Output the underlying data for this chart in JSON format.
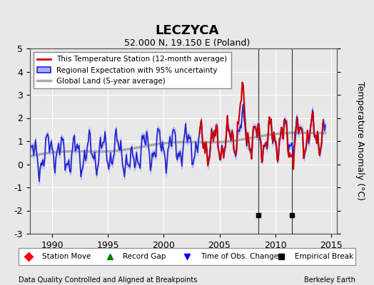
{
  "title": "LECZYCA",
  "subtitle": "52.000 N, 19.150 E (Poland)",
  "ylabel": "Temperature Anomaly (°C)",
  "xlim": [
    1988.0,
    2015.5
  ],
  "ylim": [
    -3.0,
    5.0
  ],
  "yticks": [
    -3,
    -2,
    -1,
    0,
    1,
    2,
    3,
    4,
    5
  ],
  "xticks": [
    1990,
    1995,
    2000,
    2005,
    2010,
    2015
  ],
  "background_color": "#e8e8e8",
  "plot_bg_color": "#e8e8e8",
  "grid_color": "#ffffff",
  "empirical_breaks": [
    2008.5,
    2011.5
  ],
  "footer_left": "Data Quality Controlled and Aligned at Breakpoints",
  "footer_right": "Berkeley Earth"
}
